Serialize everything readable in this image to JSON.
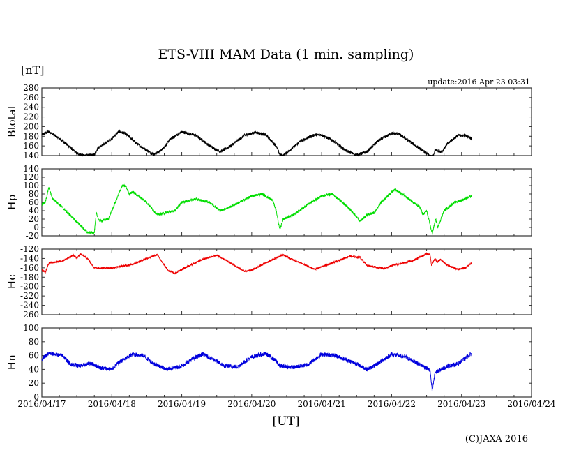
{
  "chart_data": {
    "type": "line",
    "title": "ETS-VIII MAM Data (1 min. sampling)",
    "ylabel_unit": "[nT]",
    "xlabel": "[UT]",
    "update": "update:2016 Apr 23 03:31",
    "copyright": "(C)JAXA 2016",
    "x_tick_labels": [
      "2016/04/17",
      "2016/04/18",
      "2016/04/19",
      "2016/04/20",
      "2016/04/21",
      "2016/04/22",
      "2016/04/23",
      "2016/04/24"
    ],
    "x_unit": "days since 2016/04/17 00:00 UT",
    "xlim": [
      0,
      7
    ],
    "grid": false,
    "panels": [
      {
        "name": "Btotal",
        "color": "#000000",
        "ylim": [
          140,
          280
        ],
        "yticks": [
          "280",
          "260",
          "240",
          "220",
          "200",
          "180",
          "160",
          "140"
        ],
        "noise": 3,
        "points": [
          [
            0,
            183
          ],
          [
            0.1,
            190
          ],
          [
            0.3,
            170
          ],
          [
            0.5,
            145
          ],
          [
            0.6,
            140
          ],
          [
            0.75,
            142
          ],
          [
            0.8,
            155
          ],
          [
            0.9,
            165
          ],
          [
            1.0,
            175
          ],
          [
            1.1,
            190
          ],
          [
            1.2,
            185
          ],
          [
            1.4,
            160
          ],
          [
            1.6,
            142
          ],
          [
            1.7,
            150
          ],
          [
            1.85,
            175
          ],
          [
            2.0,
            189
          ],
          [
            2.2,
            182
          ],
          [
            2.4,
            160
          ],
          [
            2.55,
            148
          ],
          [
            2.7,
            160
          ],
          [
            2.9,
            182
          ],
          [
            3.05,
            188
          ],
          [
            3.2,
            183
          ],
          [
            3.35,
            160
          ],
          [
            3.4,
            142
          ],
          [
            3.45,
            140
          ],
          [
            3.55,
            152
          ],
          [
            3.7,
            170
          ],
          [
            3.9,
            183
          ],
          [
            4.0,
            183
          ],
          [
            4.15,
            172
          ],
          [
            4.35,
            150
          ],
          [
            4.5,
            141
          ],
          [
            4.65,
            148
          ],
          [
            4.8,
            170
          ],
          [
            5.0,
            186
          ],
          [
            5.1,
            185
          ],
          [
            5.3,
            165
          ],
          [
            5.5,
            145
          ],
          [
            5.55,
            139
          ],
          [
            5.6,
            140
          ],
          [
            5.62,
            152
          ],
          [
            5.72,
            148
          ],
          [
            5.8,
            165
          ],
          [
            5.95,
            182
          ],
          [
            6.05,
            182
          ],
          [
            6.14,
            176
          ]
        ]
      },
      {
        "name": "Hp",
        "color": "#00dd00",
        "ylim": [
          -20,
          140
        ],
        "yticks": [
          "140",
          "120",
          "100",
          "80",
          "60",
          "40",
          "20",
          "0",
          "-20"
        ],
        "noise": 3,
        "points": [
          [
            0,
            55
          ],
          [
            0.05,
            60
          ],
          [
            0.1,
            95
          ],
          [
            0.15,
            70
          ],
          [
            0.25,
            55
          ],
          [
            0.4,
            30
          ],
          [
            0.55,
            5
          ],
          [
            0.65,
            -12
          ],
          [
            0.75,
            -12
          ],
          [
            0.78,
            35
          ],
          [
            0.82,
            15
          ],
          [
            0.95,
            20
          ],
          [
            1.05,
            60
          ],
          [
            1.15,
            100
          ],
          [
            1.2,
            98
          ],
          [
            1.25,
            80
          ],
          [
            1.3,
            85
          ],
          [
            1.5,
            60
          ],
          [
            1.65,
            30
          ],
          [
            1.9,
            40
          ],
          [
            2.0,
            60
          ],
          [
            2.2,
            68
          ],
          [
            2.4,
            60
          ],
          [
            2.55,
            40
          ],
          [
            2.7,
            50
          ],
          [
            3.0,
            75
          ],
          [
            3.15,
            80
          ],
          [
            3.3,
            65
          ],
          [
            3.35,
            40
          ],
          [
            3.4,
            -5
          ],
          [
            3.45,
            20
          ],
          [
            3.6,
            30
          ],
          [
            3.8,
            55
          ],
          [
            4.0,
            75
          ],
          [
            4.15,
            80
          ],
          [
            4.3,
            60
          ],
          [
            4.45,
            35
          ],
          [
            4.55,
            15
          ],
          [
            4.65,
            30
          ],
          [
            4.75,
            35
          ],
          [
            4.85,
            60
          ],
          [
            5.0,
            85
          ],
          [
            5.05,
            90
          ],
          [
            5.2,
            75
          ],
          [
            5.3,
            60
          ],
          [
            5.4,
            50
          ],
          [
            5.45,
            30
          ],
          [
            5.5,
            40
          ],
          [
            5.58,
            -15
          ],
          [
            5.63,
            20
          ],
          [
            5.66,
            0
          ],
          [
            5.75,
            40
          ],
          [
            5.9,
            60
          ],
          [
            6.0,
            65
          ],
          [
            6.14,
            75
          ]
        ]
      },
      {
        "name": "Hc",
        "color": "#ee0000",
        "ylim": [
          -260,
          -120
        ],
        "yticks": [
          "-120",
          "-140",
          "-160",
          "-180",
          "-200",
          "-220",
          "-240",
          "-260"
        ],
        "noise": 2,
        "points": [
          [
            0,
            -165
          ],
          [
            0.05,
            -170
          ],
          [
            0.1,
            -150
          ],
          [
            0.3,
            -145
          ],
          [
            0.45,
            -133
          ],
          [
            0.5,
            -140
          ],
          [
            0.55,
            -130
          ],
          [
            0.65,
            -140
          ],
          [
            0.75,
            -160
          ],
          [
            1.0,
            -160
          ],
          [
            1.2,
            -155
          ],
          [
            1.3,
            -152
          ],
          [
            1.5,
            -140
          ],
          [
            1.65,
            -132
          ],
          [
            1.8,
            -165
          ],
          [
            1.9,
            -172
          ],
          [
            2.0,
            -163
          ],
          [
            2.3,
            -142
          ],
          [
            2.5,
            -133
          ],
          [
            2.7,
            -150
          ],
          [
            2.9,
            -168
          ],
          [
            3.0,
            -165
          ],
          [
            3.2,
            -150
          ],
          [
            3.4,
            -135
          ],
          [
            3.45,
            -132
          ],
          [
            3.55,
            -140
          ],
          [
            3.9,
            -163
          ],
          [
            4.15,
            -150
          ],
          [
            4.4,
            -135
          ],
          [
            4.55,
            -138
          ],
          [
            4.65,
            -155
          ],
          [
            4.9,
            -162
          ],
          [
            5.0,
            -155
          ],
          [
            5.3,
            -145
          ],
          [
            5.5,
            -130
          ],
          [
            5.55,
            -132
          ],
          [
            5.57,
            -155
          ],
          [
            5.62,
            -140
          ],
          [
            5.65,
            -148
          ],
          [
            5.7,
            -142
          ],
          [
            5.8,
            -155
          ],
          [
            5.95,
            -163
          ],
          [
            6.05,
            -160
          ],
          [
            6.14,
            -150
          ]
        ]
      },
      {
        "name": "Hn",
        "color": "#0000dd",
        "ylim": [
          0,
          100
        ],
        "yticks": [
          "100",
          "80",
          "60",
          "40",
          "20",
          "0"
        ],
        "noise": 3,
        "points": [
          [
            0,
            55
          ],
          [
            0.1,
            63
          ],
          [
            0.3,
            60
          ],
          [
            0.4,
            48
          ],
          [
            0.55,
            45
          ],
          [
            0.7,
            49
          ],
          [
            0.85,
            42
          ],
          [
            1.0,
            40
          ],
          [
            1.1,
            50
          ],
          [
            1.3,
            62
          ],
          [
            1.45,
            60
          ],
          [
            1.6,
            48
          ],
          [
            1.8,
            40
          ],
          [
            2.0,
            45
          ],
          [
            2.15,
            55
          ],
          [
            2.3,
            62
          ],
          [
            2.5,
            52
          ],
          [
            2.6,
            45
          ],
          [
            2.8,
            44
          ],
          [
            3.0,
            58
          ],
          [
            3.2,
            63
          ],
          [
            3.35,
            52
          ],
          [
            3.4,
            45
          ],
          [
            3.6,
            43
          ],
          [
            3.8,
            47
          ],
          [
            4.0,
            62
          ],
          [
            4.2,
            60
          ],
          [
            4.5,
            48
          ],
          [
            4.65,
            40
          ],
          [
            4.75,
            45
          ],
          [
            5.0,
            62
          ],
          [
            5.2,
            58
          ],
          [
            5.5,
            42
          ],
          [
            5.55,
            38
          ],
          [
            5.58,
            8
          ],
          [
            5.62,
            35
          ],
          [
            5.8,
            45
          ],
          [
            5.95,
            48
          ],
          [
            6.14,
            63
          ]
        ]
      }
    ]
  }
}
